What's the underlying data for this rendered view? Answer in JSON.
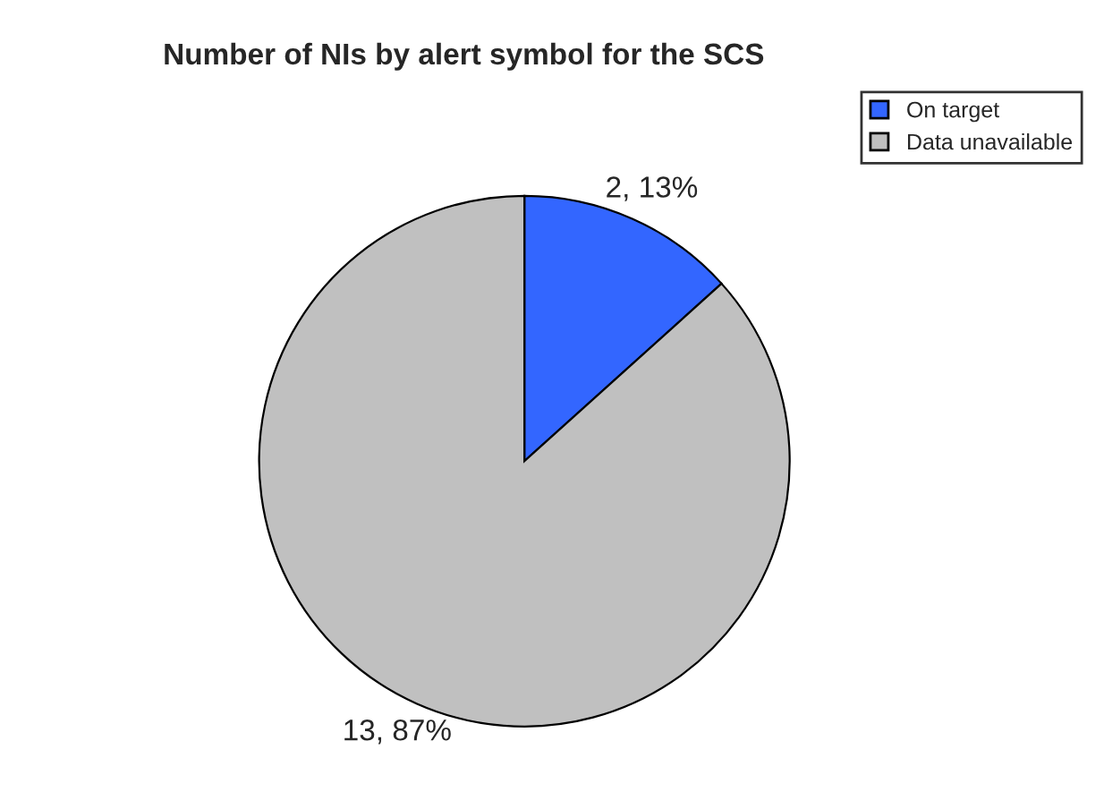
{
  "chart_data": {
    "type": "pie",
    "title": "Number of NIs by alert symbol for the SCS",
    "categories": [
      "On target",
      "Data unavailable"
    ],
    "values": [
      2,
      13
    ],
    "colors": [
      "#3366ff",
      "#c0c0c0"
    ],
    "value_labels": [
      "2, 13%",
      "13, 87%"
    ],
    "legend": "top right"
  }
}
